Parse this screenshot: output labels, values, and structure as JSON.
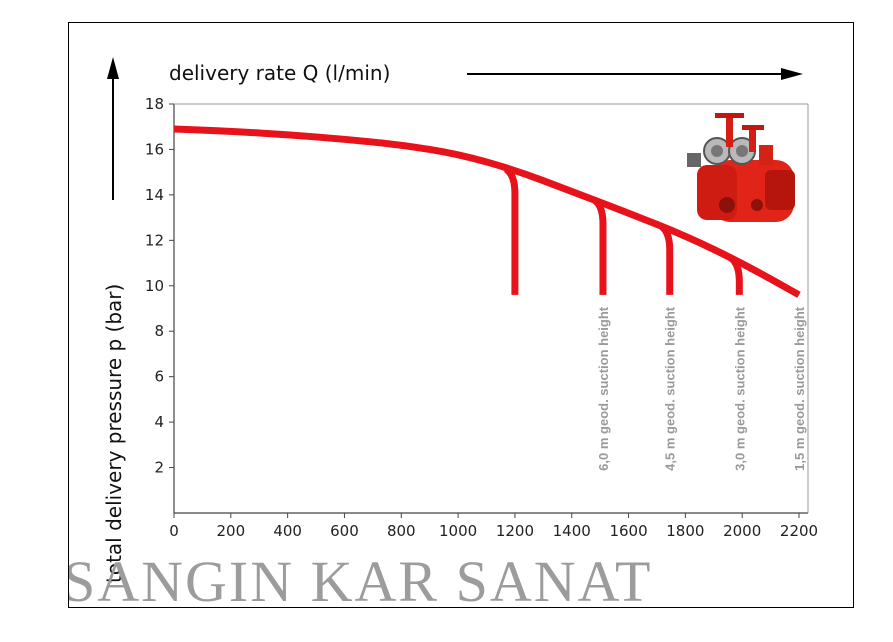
{
  "chart_data": {
    "type": "line",
    "xlabel": "delivery rate Q (l/min)",
    "ylabel": "total delivery pressure p (bar)",
    "xlim": [
      0,
      2200
    ],
    "ylim": [
      0,
      18
    ],
    "x_ticks": [
      "0",
      "200",
      "400",
      "600",
      "800",
      "1000",
      "1200",
      "1400",
      "1600",
      "1800",
      "2000",
      "2200"
    ],
    "y_ticks": [
      "2",
      "4",
      "6",
      "8",
      "10",
      "12",
      "14",
      "16",
      "18"
    ],
    "grid": false,
    "main_curve": {
      "x": [
        0,
        200,
        400,
        600,
        800,
        1000,
        1200,
        1400,
        1600,
        1800,
        2000,
        2200
      ],
      "y": [
        16.9,
        16.8,
        16.65,
        16.45,
        16.2,
        15.8,
        15.1,
        14.15,
        13.2,
        12.2,
        11.0,
        9.6
      ],
      "color": "#e8121b"
    },
    "series": [
      {
        "name": "",
        "x_drop": 1200,
        "y_start": 15.05,
        "y_end": 9.6
      },
      {
        "name": "6,0 m geod. suction height",
        "x_drop": 1510,
        "y_start": 13.7,
        "y_end": 9.6
      },
      {
        "name": "4,5 m geod. suction height",
        "x_drop": 1745,
        "y_start": 12.55,
        "y_end": 9.6
      },
      {
        "name": "3,0 m geod. suction height",
        "x_drop": 1990,
        "y_start": 11.15,
        "y_end": 9.6
      },
      {
        "name": "1,5 m geod. suction height",
        "x_drop": 2200,
        "y_start": 9.6,
        "y_end": 9.6
      }
    ]
  },
  "watermark": "SANGIN KAR SANAT",
  "pump_icon": "fire-pump-image-icon"
}
